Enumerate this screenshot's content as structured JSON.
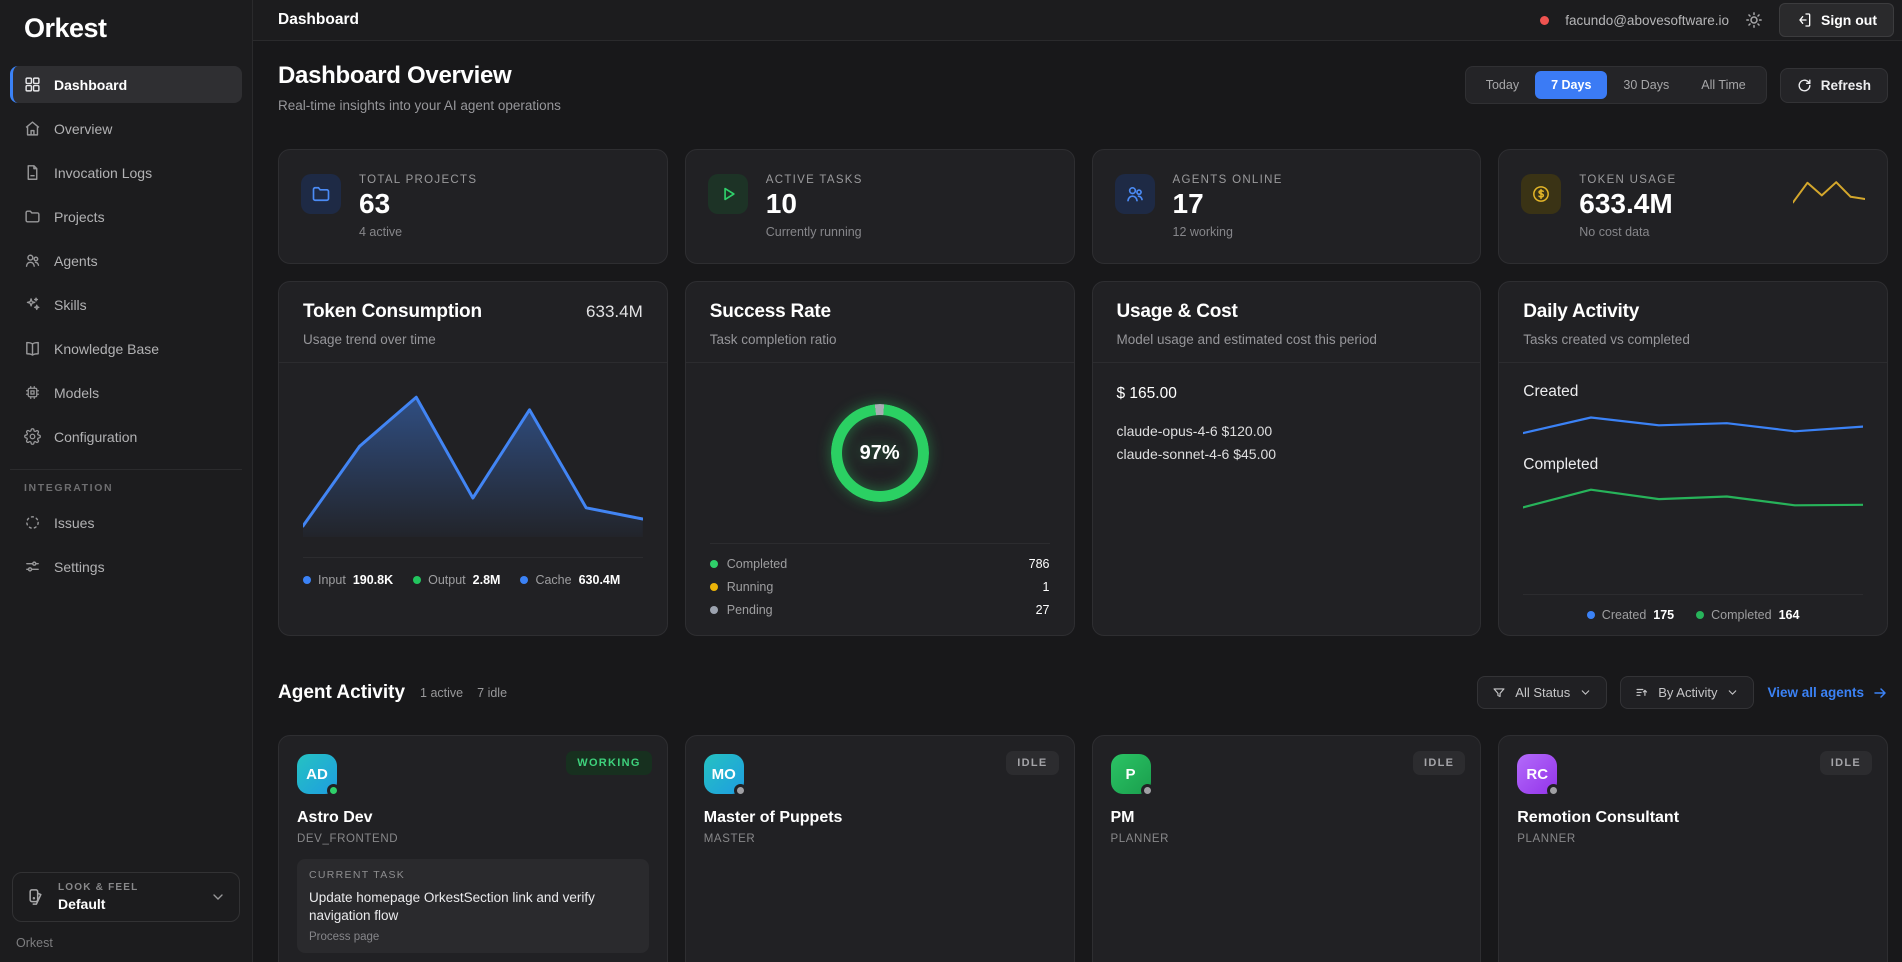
{
  "app": {
    "logo": "Orkest",
    "footer": "Orkest"
  },
  "topbar": {
    "title": "Dashboard",
    "email": "facundo@abovesoftware.io",
    "signout_label": "Sign out",
    "connection_color": "#ef5350"
  },
  "sidebar": {
    "items": [
      {
        "label": "Dashboard",
        "icon": "grid-icon",
        "active": true
      },
      {
        "label": "Overview",
        "icon": "home-icon"
      },
      {
        "label": "Invocation Logs",
        "icon": "document-icon"
      },
      {
        "label": "Projects",
        "icon": "folder-icon"
      },
      {
        "label": "Agents",
        "icon": "users-icon"
      },
      {
        "label": "Skills",
        "icon": "sparkles-icon"
      },
      {
        "label": "Knowledge Base",
        "icon": "book-icon"
      },
      {
        "label": "Models",
        "icon": "chip-icon"
      },
      {
        "label": "Configuration",
        "icon": "gear-icon"
      }
    ],
    "integration_label": "INTEGRATION",
    "integration_items": [
      {
        "label": "Issues",
        "icon": "loader-icon"
      },
      {
        "label": "Settings",
        "icon": "sliders-icon"
      }
    ],
    "look_feel": {
      "label": "LOOK & FEEL",
      "value": "Default"
    }
  },
  "header": {
    "title": "Dashboard Overview",
    "subtitle": "Real-time insights into your AI agent operations",
    "time_filters": [
      "Today",
      "7 Days",
      "30 Days",
      "All Time"
    ],
    "active_filter": "7 Days",
    "refresh_label": "Refresh",
    "accent": "#3b7bf5"
  },
  "stats": [
    {
      "label": "TOTAL PROJECTS",
      "value": "63",
      "sub": "4 active",
      "icon": "folder-icon",
      "accent_bg": "#1e2a45",
      "accent_fg": "#4b8bf5"
    },
    {
      "label": "ACTIVE TASKS",
      "value": "10",
      "sub": "Currently running",
      "icon": "play-icon",
      "accent_bg": "#1d3326",
      "accent_fg": "#2fd06a"
    },
    {
      "label": "AGENTS ONLINE",
      "value": "17",
      "sub": "12 working",
      "icon": "users-icon",
      "accent_bg": "#1e2a45",
      "accent_fg": "#4b8bf5"
    },
    {
      "label": "TOKEN USAGE",
      "value": "633.4M",
      "sub": "No cost data",
      "icon": "dollar-coin-icon",
      "accent_bg": "#3a3315",
      "accent_fg": "#e3b528",
      "sparkline": {
        "color": "#d4a72c",
        "values": [
          20,
          90,
          45,
          92,
          40,
          32
        ]
      }
    }
  ],
  "charts": {
    "token_consumption": {
      "title": "Token Consumption",
      "subtitle": "Usage trend over time",
      "total": "633.4M",
      "type": "area",
      "line_color": "#4285f4",
      "values": [
        5,
        62,
        97,
        25,
        88,
        18,
        10
      ],
      "legend": [
        {
          "label": "Input",
          "value": "190.8K",
          "color": "#3b82f6"
        },
        {
          "label": "Output",
          "value": "2.8M",
          "color": "#22c55e"
        },
        {
          "label": "Cache",
          "value": "630.4M",
          "color": "#3b82f6"
        }
      ]
    },
    "success_rate": {
      "title": "Success Rate",
      "subtitle": "Task completion ratio",
      "type": "donut",
      "percent": 97,
      "percent_label": "97%",
      "ring_color": "#2bd063",
      "rest_color": "#a8adb3",
      "legend": [
        {
          "label": "Completed",
          "value": "786",
          "color": "#2fd06a"
        },
        {
          "label": "Running",
          "value": "1",
          "color": "#eab308"
        },
        {
          "label": "Pending",
          "value": "27",
          "color": "#9ca3af"
        }
      ]
    },
    "usage_cost": {
      "title": "Usage & Cost",
      "subtitle": "Model usage and estimated cost this period",
      "total": "$ 165.00",
      "models": [
        {
          "line": "claude-opus-4-6 $120.00"
        },
        {
          "line": "claude-sonnet-4-6 $45.00"
        }
      ]
    },
    "daily_activity": {
      "title": "Daily Activity",
      "subtitle": "Tasks created vs completed",
      "type": "line",
      "series": [
        {
          "name": "Created",
          "color": "#3b82f6",
          "total": "175",
          "values": [
            15,
            75,
            45,
            53,
            22,
            40
          ]
        },
        {
          "name": "Completed",
          "color": "#27b35a",
          "total": "164",
          "values": [
            10,
            78,
            42,
            52,
            18,
            20
          ]
        }
      ]
    }
  },
  "agents": {
    "title": "Agent Activity",
    "active_count": "1 active",
    "idle_count": "7 idle",
    "status_filter": "All Status",
    "sort_filter": "By Activity",
    "view_all_label": "View all agents",
    "cards": [
      {
        "initials": "AD",
        "name": "Astro Dev",
        "role": "DEV_FRONTEND",
        "status": "WORKING",
        "avatar_from": "#25c2c2",
        "avatar_to": "#1e9de0",
        "task_label": "CURRENT TASK",
        "task_text": "Update homepage OrkestSection link and verify navigation flow",
        "task_sub": "Process page"
      },
      {
        "initials": "MO",
        "name": "Master of Puppets",
        "role": "MASTER",
        "status": "IDLE",
        "avatar_from": "#25c2c2",
        "avatar_to": "#1e9de0"
      },
      {
        "initials": "P",
        "name": "PM",
        "role": "PLANNER",
        "status": "IDLE",
        "avatar_from": "#2bc465",
        "avatar_to": "#1a9e4d"
      },
      {
        "initials": "RC",
        "name": "Remotion Consultant",
        "role": "PLANNER",
        "status": "IDLE",
        "avatar_from": "#b36bfa",
        "avatar_to": "#9333ea"
      }
    ]
  }
}
